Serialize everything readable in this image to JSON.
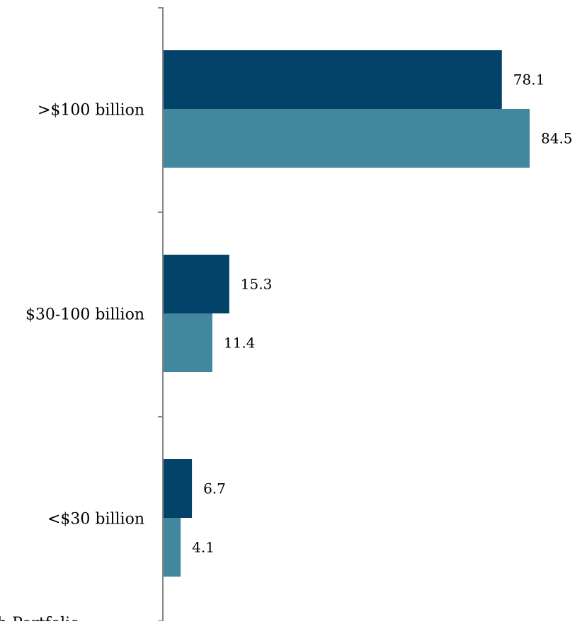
{
  "chart_data": {
    "type": "bar",
    "orientation": "horizontal",
    "categories": [
      ">$100 billion",
      "$30-100 billion",
      "<$30 billion"
    ],
    "series": [
      {
        "values": [
          78.1,
          15.3,
          6.7
        ]
      },
      {
        "values": [
          84.5,
          11.4,
          4.1
        ]
      }
    ],
    "value_labels": [
      [
        "78.1",
        "15.3",
        "6.7"
      ],
      [
        "84.5",
        "11.4",
        "4.1"
      ]
    ],
    "legend_fragment": "h Portfolio",
    "xlim": [
      0,
      100
    ],
    "grid": false,
    "x_axis_visible": false,
    "colors": {
      "series_0": "#03436A",
      "series_1": "#41879D",
      "axis": "#868686",
      "text": "#000000"
    }
  }
}
